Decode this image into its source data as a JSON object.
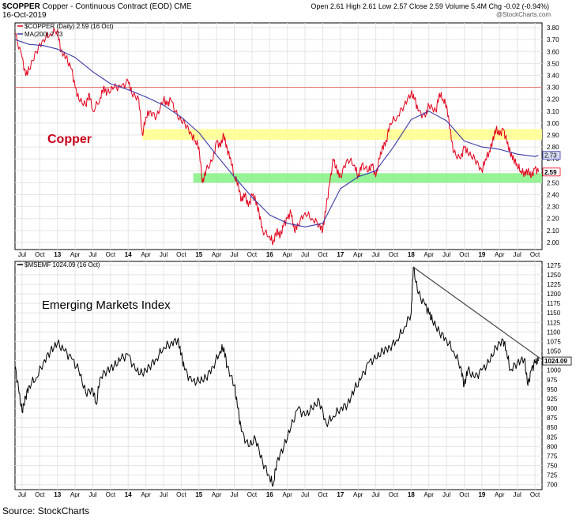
{
  "header": {
    "symbol": "$COPPER",
    "description": "Copper - Continuous Contract (EOD) CME",
    "date": "16-Oct-2019",
    "quote": "Open 2.61  High 2.61  Low 2.57  Close 2.59  Volume 5.4M  Chg -0.02 (-0.94%)",
    "watermark": "@StockCharts.com"
  },
  "source": "Source: StockCharts",
  "colors": {
    "copper_line": "#e3001b",
    "ma_line": "#3a3aa8",
    "em_line": "#000000",
    "resistance_line": "#e86a6a",
    "yellow_band": "#ffff8c",
    "green_band": "#84f184",
    "grid": "#e4e4e4",
    "callout_red": "#c8001a",
    "ma_tag_fill": "#d8dcf2"
  },
  "chart_data": [
    {
      "type": "line",
      "name": "copper-panel",
      "legend": [
        "$COPPER (Daily) 2.59 (16 Oct)",
        "MA(200) 2.73"
      ],
      "annotation": "Copper",
      "ylim": [
        1.94,
        3.84
      ],
      "yticks": [
        2.0,
        2.1,
        2.2,
        2.3,
        2.4,
        2.5,
        2.6,
        2.7,
        2.8,
        2.9,
        3.0,
        3.1,
        3.2,
        3.3,
        3.4,
        3.5,
        3.6,
        3.7,
        3.8
      ],
      "ytick_labels": [
        "2.00",
        "2.10",
        "2.20",
        "2.30",
        "2.40",
        "2.50",
        "2.60",
        "2.70",
        "2.80",
        "2.90",
        "3.00",
        "3.10",
        "3.20",
        "3.30",
        "3.40",
        "3.50",
        "3.60",
        "3.70",
        "3.80"
      ],
      "xlim": [
        2012.4,
        2019.85
      ],
      "x_ticks": [
        {
          "t": 2012.5,
          "label": "Jul"
        },
        {
          "t": 2012.75,
          "label": "Oct"
        },
        {
          "t": 2013.0,
          "label": "13",
          "bold": true
        },
        {
          "t": 2013.25,
          "label": "Apr"
        },
        {
          "t": 2013.5,
          "label": "Jul"
        },
        {
          "t": 2013.75,
          "label": "Oct"
        },
        {
          "t": 2014.0,
          "label": "14",
          "bold": true
        },
        {
          "t": 2014.25,
          "label": "Apr"
        },
        {
          "t": 2014.5,
          "label": "Jul"
        },
        {
          "t": 2014.75,
          "label": "Oct"
        },
        {
          "t": 2015.0,
          "label": "15",
          "bold": true
        },
        {
          "t": 2015.25,
          "label": "Apr"
        },
        {
          "t": 2015.5,
          "label": "Jul"
        },
        {
          "t": 2015.75,
          "label": "Oct"
        },
        {
          "t": 2016.0,
          "label": "16",
          "bold": true
        },
        {
          "t": 2016.25,
          "label": "Apr"
        },
        {
          "t": 2016.5,
          "label": "Jul"
        },
        {
          "t": 2016.75,
          "label": "Oct"
        },
        {
          "t": 2017.0,
          "label": "17",
          "bold": true
        },
        {
          "t": 2017.25,
          "label": "Apr"
        },
        {
          "t": 2017.5,
          "label": "Jul"
        },
        {
          "t": 2017.75,
          "label": "Oct"
        },
        {
          "t": 2018.0,
          "label": "18",
          "bold": true
        },
        {
          "t": 2018.25,
          "label": "Apr"
        },
        {
          "t": 2018.5,
          "label": "Jul"
        },
        {
          "t": 2018.75,
          "label": "Oct"
        },
        {
          "t": 2019.0,
          "label": "19",
          "bold": true
        },
        {
          "t": 2019.25,
          "label": "Apr"
        },
        {
          "t": 2019.5,
          "label": "Jul"
        },
        {
          "t": 2019.75,
          "label": "Oct"
        }
      ],
      "bands": [
        {
          "name": "yellow-zone",
          "y_range": [
            2.86,
            2.95
          ],
          "x_range": [
            2014.2,
            2019.85
          ]
        },
        {
          "name": "green-zone",
          "y_range": [
            2.5,
            2.58
          ],
          "x_range": [
            2014.92,
            2019.85
          ]
        }
      ],
      "hline": {
        "name": "resistance-line",
        "y": 3.3
      },
      "series": [
        {
          "name": "$COPPER (Daily)",
          "x": [
            2012.4,
            2012.5,
            2012.55,
            2012.6,
            2012.7,
            2012.8,
            2012.9,
            2013.0,
            2013.05,
            2013.12,
            2013.2,
            2013.25,
            2013.3,
            2013.4,
            2013.45,
            2013.5,
            2013.6,
            2013.65,
            2013.7,
            2013.8,
            2013.9,
            2014.0,
            2014.05,
            2014.15,
            2014.2,
            2014.25,
            2014.3,
            2014.4,
            2014.5,
            2014.55,
            2014.6,
            2014.7,
            2014.8,
            2014.9,
            2014.95,
            2015.0,
            2015.05,
            2015.1,
            2015.2,
            2015.25,
            2015.3,
            2015.35,
            2015.4,
            2015.45,
            2015.5,
            2015.55,
            2015.6,
            2015.65,
            2015.7,
            2015.75,
            2015.8,
            2015.85,
            2015.9,
            2016.0,
            2016.05,
            2016.1,
            2016.15,
            2016.2,
            2016.25,
            2016.3,
            2016.35,
            2016.4,
            2016.5,
            2016.6,
            2016.7,
            2016.75,
            2016.8,
            2016.85,
            2016.9,
            2016.95,
            2017.0,
            2017.1,
            2017.2,
            2017.25,
            2017.3,
            2017.4,
            2017.45,
            2017.5,
            2017.55,
            2017.6,
            2017.65,
            2017.7,
            2017.8,
            2017.9,
            2018.0,
            2018.05,
            2018.1,
            2018.2,
            2018.25,
            2018.35,
            2018.4,
            2018.45,
            2018.5,
            2018.55,
            2018.6,
            2018.7,
            2018.75,
            2018.8,
            2018.9,
            2019.0,
            2019.05,
            2019.1,
            2019.15,
            2019.2,
            2019.25,
            2019.3,
            2019.35,
            2019.4,
            2019.45,
            2019.5,
            2019.55,
            2019.6,
            2019.65,
            2019.7,
            2019.75,
            2019.8
          ],
          "y": [
            3.75,
            3.55,
            3.4,
            3.45,
            3.6,
            3.7,
            3.75,
            3.78,
            3.6,
            3.55,
            3.45,
            3.3,
            3.2,
            3.15,
            3.25,
            3.1,
            3.2,
            3.3,
            3.25,
            3.3,
            3.3,
            3.35,
            3.25,
            3.2,
            2.9,
            3.05,
            3.1,
            3.05,
            3.2,
            3.15,
            3.2,
            3.05,
            3.0,
            2.9,
            2.85,
            2.8,
            2.5,
            2.6,
            2.7,
            2.85,
            2.8,
            2.9,
            2.78,
            2.7,
            2.55,
            2.5,
            2.35,
            2.4,
            2.3,
            2.4,
            2.35,
            2.25,
            2.1,
            2.05,
            2.0,
            2.1,
            2.05,
            2.15,
            2.2,
            2.25,
            2.1,
            2.15,
            2.25,
            2.2,
            2.15,
            2.1,
            2.3,
            2.5,
            2.7,
            2.6,
            2.55,
            2.7,
            2.65,
            2.55,
            2.65,
            2.6,
            2.65,
            2.55,
            2.7,
            2.8,
            2.85,
            3.0,
            3.05,
            3.15,
            3.25,
            3.2,
            3.1,
            3.05,
            3.15,
            3.1,
            3.25,
            3.2,
            3.15,
            2.95,
            2.75,
            2.7,
            2.8,
            2.75,
            2.7,
            2.6,
            2.7,
            2.75,
            2.85,
            2.95,
            2.9,
            2.95,
            2.85,
            2.75,
            2.7,
            2.65,
            2.6,
            2.58,
            2.6,
            2.55,
            2.62,
            2.59
          ]
        },
        {
          "name": "MA(200)",
          "x": [
            2012.4,
            2012.6,
            2012.8,
            2013.0,
            2013.25,
            2013.5,
            2013.75,
            2014.0,
            2014.25,
            2014.5,
            2014.75,
            2015.0,
            2015.25,
            2015.5,
            2015.75,
            2016.0,
            2016.25,
            2016.5,
            2016.75,
            2017.0,
            2017.25,
            2017.5,
            2017.75,
            2018.0,
            2018.25,
            2018.5,
            2018.75,
            2019.0,
            2019.25,
            2019.5,
            2019.75,
            2019.8
          ],
          "y": [
            3.7,
            3.66,
            3.65,
            3.62,
            3.55,
            3.43,
            3.33,
            3.28,
            3.22,
            3.15,
            3.05,
            2.92,
            2.73,
            2.55,
            2.38,
            2.23,
            2.16,
            2.13,
            2.16,
            2.45,
            2.55,
            2.6,
            2.8,
            3.03,
            3.1,
            3.02,
            2.85,
            2.8,
            2.78,
            2.74,
            2.72,
            2.73
          ]
        }
      ],
      "last_value_tags": [
        "2.73",
        "2.59"
      ]
    },
    {
      "type": "line",
      "name": "emerging-markets-panel",
      "legend": [
        "$MSEMF 1024.09 (16 Oct)"
      ],
      "annotation": "Emerging Markets Index",
      "ylim": [
        687,
        1285
      ],
      "yticks": [
        700,
        725,
        750,
        775,
        800,
        825,
        850,
        875,
        900,
        925,
        950,
        975,
        1000,
        1025,
        1050,
        1075,
        1100,
        1125,
        1150,
        1175,
        1200,
        1225,
        1250,
        1275
      ],
      "ytick_labels": [
        "700",
        "725",
        "750",
        "775",
        "800",
        "825",
        "850",
        "875",
        "900",
        "925",
        "950",
        "975",
        "1000",
        "1025",
        "1050",
        "1075",
        "1100",
        "1125",
        "1150",
        "1175",
        "1200",
        "1225",
        "1250",
        "1275"
      ],
      "xlim": [
        2012.4,
        2019.85
      ],
      "trendline": {
        "name": "downtrend-line",
        "from": [
          2018.03,
          1270
        ],
        "to": [
          2019.83,
          1030
        ]
      },
      "series": [
        {
          "name": "$MSEMF",
          "x": [
            2012.4,
            2012.45,
            2012.5,
            2012.55,
            2012.6,
            2012.7,
            2012.8,
            2012.9,
            2013.0,
            2013.1,
            2013.2,
            2013.3,
            2013.4,
            2013.5,
            2013.55,
            2013.6,
            2013.7,
            2013.8,
            2013.9,
            2014.0,
            2014.1,
            2014.2,
            2014.3,
            2014.4,
            2014.5,
            2014.6,
            2014.7,
            2014.75,
            2014.8,
            2014.9,
            2015.0,
            2015.1,
            2015.2,
            2015.3,
            2015.35,
            2015.4,
            2015.5,
            2015.55,
            2015.6,
            2015.7,
            2015.8,
            2015.9,
            2016.0,
            2016.05,
            2016.1,
            2016.2,
            2016.3,
            2016.4,
            2016.5,
            2016.6,
            2016.7,
            2016.8,
            2016.9,
            2017.0,
            2017.1,
            2017.2,
            2017.3,
            2017.4,
            2017.5,
            2017.6,
            2017.7,
            2017.8,
            2017.9,
            2018.0,
            2018.03,
            2018.1,
            2018.2,
            2018.25,
            2018.3,
            2018.4,
            2018.5,
            2018.6,
            2018.7,
            2018.75,
            2018.8,
            2018.9,
            2019.0,
            2019.1,
            2019.2,
            2019.3,
            2019.35,
            2019.4,
            2019.5,
            2019.6,
            2019.65,
            2019.7,
            2019.75,
            2019.8
          ],
          "y": [
            1010,
            950,
            890,
            930,
            960,
            980,
            1020,
            1050,
            1070,
            1050,
            1030,
            1000,
            940,
            950,
            910,
            980,
            1000,
            1010,
            1030,
            1040,
            1000,
            990,
            1010,
            1030,
            1060,
            1070,
            1080,
            1040,
            1000,
            970,
            970,
            980,
            1010,
            1050,
            1060,
            1010,
            960,
            900,
            840,
            800,
            820,
            760,
            720,
            700,
            760,
            800,
            850,
            900,
            880,
            900,
            920,
            860,
            880,
            900,
            910,
            950,
            980,
            1020,
            1030,
            1050,
            1060,
            1080,
            1110,
            1150,
            1270,
            1200,
            1170,
            1150,
            1130,
            1100,
            1080,
            1050,
            1010,
            960,
            1000,
            980,
            1000,
            1020,
            1060,
            1080,
            1050,
            1000,
            1020,
            1030,
            960,
            1000,
            1020,
            1024
          ]
        }
      ],
      "last_value_tag": "1024.09"
    }
  ]
}
